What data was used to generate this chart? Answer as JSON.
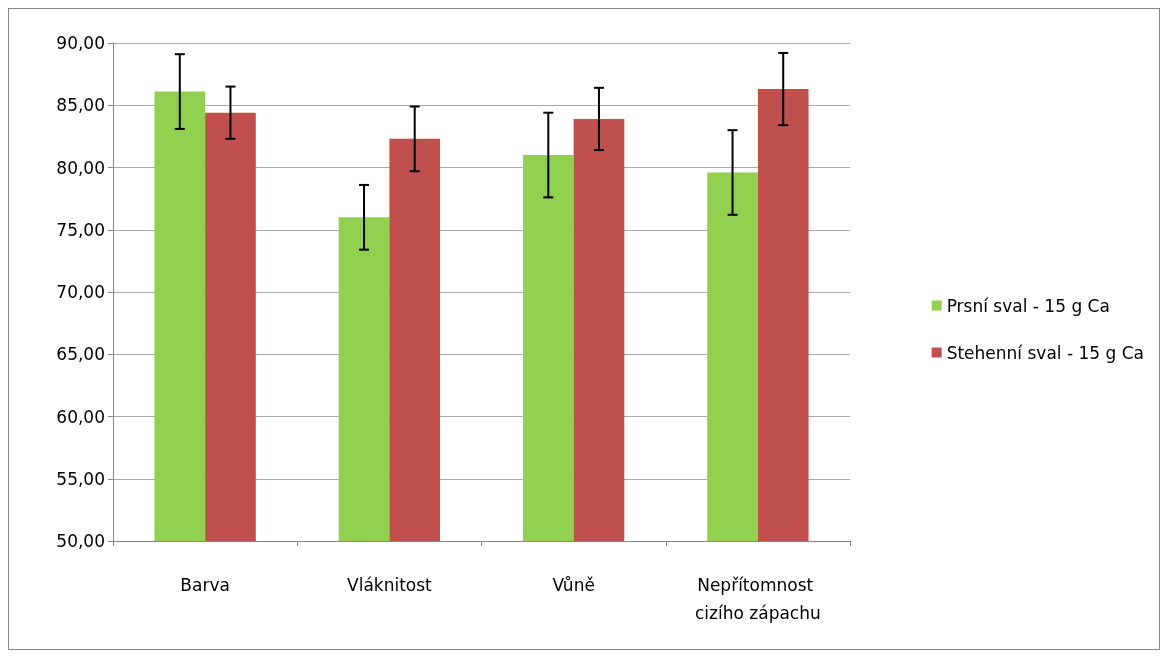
{
  "chart_data": {
    "type": "bar",
    "categories": [
      "Barva",
      "Vláknitost",
      "Vůně",
      "Nepřítomnost cizího zápachu"
    ],
    "series": [
      {
        "name": "Prsní sval - 15 g Ca",
        "color": "#92d050",
        "values": [
          86.1,
          76.0,
          81.0,
          79.6
        ],
        "errors": [
          3.0,
          2.6,
          3.4,
          3.4
        ]
      },
      {
        "name": "Stehenní sval - 15 g Ca",
        "color": "#c0504d",
        "values": [
          84.4,
          82.3,
          83.9,
          86.3
        ],
        "errors": [
          2.1,
          2.6,
          2.5,
          2.9
        ]
      }
    ],
    "ylim": [
      50,
      90
    ],
    "yticks": [
      {
        "value": 50,
        "label": "50,00"
      },
      {
        "value": 55,
        "label": "55,00"
      },
      {
        "value": 60,
        "label": "60,00"
      },
      {
        "value": 65,
        "label": "65,00"
      },
      {
        "value": 70,
        "label": "70,00"
      },
      {
        "value": 75,
        "label": "75,00"
      },
      {
        "value": 80,
        "label": "80,00"
      },
      {
        "value": 85,
        "label": "85,00"
      },
      {
        "value": 90,
        "label": "90,00"
      }
    ],
    "grid": "y",
    "legend": "right"
  }
}
